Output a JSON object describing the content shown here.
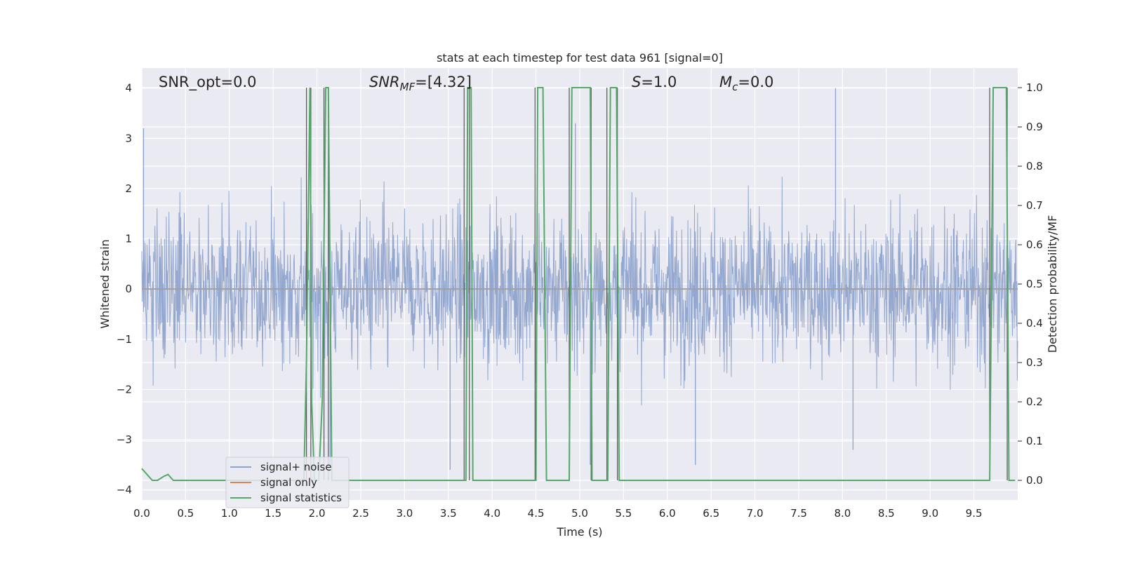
{
  "chart_data": {
    "type": "line",
    "title": "stats at each timestep for test data 961 [signal=0]",
    "xlabel": "Time (s)",
    "ylabel": "Whitened strain",
    "ylabel_right": "Detection probability/MF",
    "xlim": [
      0.0,
      10.0
    ],
    "ylim": [
      -4.2,
      4.4
    ],
    "ylim_right": [
      -0.05,
      1.05
    ],
    "x_ticks": [
      "0.0",
      "0.5",
      "1.0",
      "1.5",
      "2.0",
      "2.5",
      "3.0",
      "3.5",
      "4.0",
      "4.5",
      "5.0",
      "5.5",
      "6.0",
      "6.5",
      "7.0",
      "7.5",
      "8.0",
      "8.5",
      "9.0",
      "9.5"
    ],
    "y_ticks": [
      "−4",
      "−3",
      "−2",
      "−1",
      "0",
      "1",
      "2",
      "3",
      "4"
    ],
    "y_right_ticks": [
      "0.0",
      "0.1",
      "0.2",
      "0.3",
      "0.4",
      "0.5",
      "0.6",
      "0.7",
      "0.8",
      "0.9",
      "1.0"
    ],
    "grid": true,
    "legend_placement": "lower-left",
    "annotations": {
      "snr_opt": "SNR_opt=0.0",
      "snr_mf_sym": "SNR",
      "snr_mf_sub": "MF",
      "snr_mf_val": "=[4.32]",
      "s_sym": "S",
      "s_val": "=1.0",
      "mc_sym": "M",
      "mc_sub": "c",
      "mc_val": "=0.0"
    },
    "series": [
      {
        "name": "signal+ noise",
        "color": "#8fa3cc",
        "description_values": "white noise, std ≈ 1, envelope ±2.5 with peaks to ±3.5",
        "peaks_x": [
          0.02,
          2.15,
          3.52,
          4.95,
          5.12,
          6.32,
          7.92,
          8.12,
          9.72
        ],
        "peaks_y": [
          3.2,
          -3.5,
          -3.6,
          3.3,
          -3.5,
          -3.5,
          4.0,
          -3.2,
          3.35
        ]
      },
      {
        "name": "signal only",
        "color": "#dd8452",
        "x": [
          0.0,
          10.0
        ],
        "y": [
          0.0,
          0.0
        ]
      },
      {
        "name": "signal statistics",
        "color": "#55a868",
        "x": [
          0.0,
          0.08,
          0.12,
          0.18,
          0.25,
          0.3,
          0.36,
          0.4,
          1.85,
          1.88,
          1.92,
          1.94,
          1.97,
          2.02,
          2.06,
          2.1,
          2.13,
          2.15,
          2.17,
          3.7,
          3.72,
          3.76,
          3.78,
          4.5,
          4.52,
          4.58,
          4.62,
          4.64,
          4.72,
          4.88,
          4.91,
          4.93,
          5.12,
          5.14,
          5.32,
          5.35,
          5.38,
          5.42,
          5.45,
          9.68,
          9.72,
          9.82,
          9.87,
          9.9,
          9.94,
          9.97
        ],
        "y": [
          0.03,
          0.01,
          0.0,
          0.0,
          0.01,
          0.015,
          0.0,
          0.0,
          0.0,
          0.3,
          1.0,
          0.2,
          0.0,
          0.0,
          0.2,
          1.0,
          1.0,
          0.5,
          0.0,
          0.0,
          1.0,
          1.0,
          0.0,
          0.0,
          1.0,
          1.0,
          0.0,
          0.0,
          0.0,
          0.0,
          1.0,
          1.0,
          1.0,
          0.0,
          0.0,
          1.0,
          1.0,
          1.0,
          0.0,
          0.0,
          1.0,
          1.0,
          1.0,
          0.0,
          0.0,
          0.0
        ]
      }
    ],
    "vertical_markers_x": [
      1.88,
      1.93,
      2.08,
      2.13,
      3.68,
      3.74,
      4.49,
      4.88,
      5.13,
      5.31,
      5.43,
      9.68,
      9.88
    ]
  }
}
